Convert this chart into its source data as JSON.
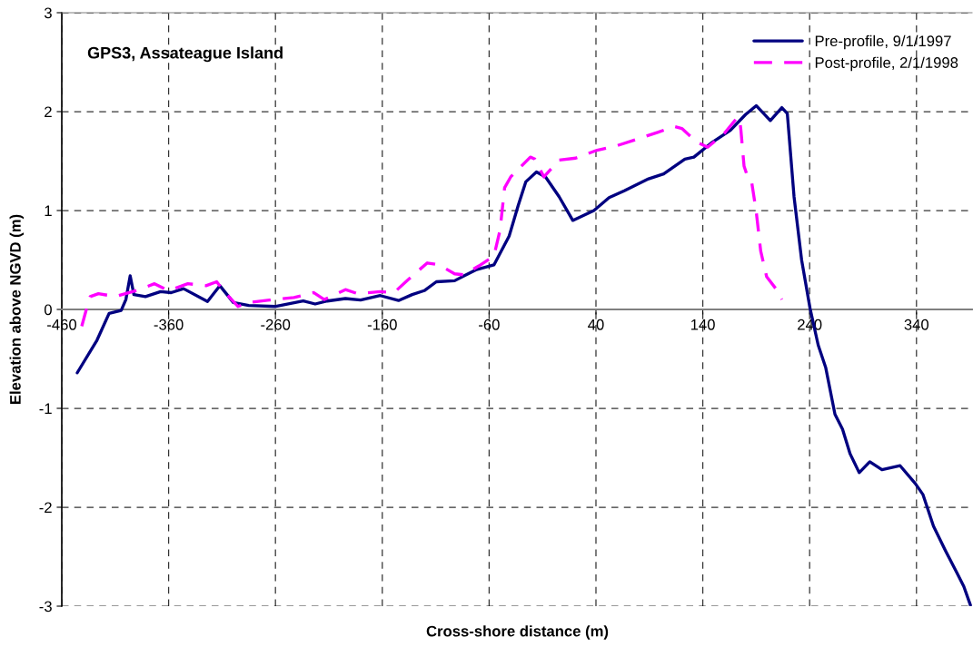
{
  "chart_data": {
    "type": "line",
    "title": "GPS3, Assateague Island",
    "xlabel": "Cross-shore distance (m)",
    "ylabel": "Elevation above NGVD (m)",
    "xlim": [
      -460,
      392
    ],
    "ylim": [
      -3,
      3
    ],
    "xticks": [
      -460,
      -360,
      -260,
      -160,
      -60,
      40,
      140,
      240,
      340
    ],
    "yticks": [
      -3,
      -2,
      -1,
      0,
      1,
      2,
      3
    ],
    "grid": true,
    "legend": "top right",
    "marker": "none",
    "series": [
      {
        "name": "Pre-profile, 9/1/1997",
        "color": "#000080",
        "line_style": "solid",
        "x": [
          -445.5,
          -427,
          -415.7,
          -404.4,
          -400,
          -396,
          -392.5,
          -381.7,
          -367.5,
          -357.6,
          -346,
          -323.6,
          -312,
          -299.4,
          -285,
          -259.7,
          -234,
          -222.8,
          -211.5,
          -194.5,
          -180.3,
          -161.9,
          -144.8,
          -132,
          -120.7,
          -109.4,
          -92.3,
          -72.5,
          -55.5,
          -41.3,
          -32.8,
          -25.7,
          -15.7,
          -7.2,
          5.5,
          18.3,
          38.1,
          52.3,
          66.5,
          89.2,
          103.4,
          123.2,
          131.7,
          148.8,
          165.8,
          180,
          190,
          203.2,
          214,
          219.1,
          225.4,
          232.5,
          240.4,
          248,
          255.1,
          263.7,
          270.8,
          277.9,
          286.4,
          296.3,
          307.7,
          324.7,
          338.9,
          346,
          355.9,
          367.2,
          377.2,
          384.3,
          390.5
        ],
        "values": [
          -0.64,
          -0.31,
          -0.04,
          -0.01,
          0.1,
          0.34,
          0.15,
          0.13,
          0.18,
          0.17,
          0.21,
          0.08,
          0.24,
          0.07,
          0.04,
          0.03,
          0.085,
          0.055,
          0.085,
          0.11,
          0.095,
          0.14,
          0.09,
          0.15,
          0.19,
          0.28,
          0.29,
          0.4,
          0.45,
          0.74,
          1.05,
          1.29,
          1.39,
          1.34,
          1.14,
          0.9,
          1.0,
          1.13,
          1.2,
          1.32,
          1.37,
          1.52,
          1.54,
          1.69,
          1.81,
          1.97,
          2.06,
          1.91,
          2.04,
          1.98,
          1.14,
          0.5,
          0.01,
          -0.36,
          -0.59,
          -1.06,
          -1.21,
          -1.46,
          -1.65,
          -1.54,
          -1.62,
          -1.58,
          -1.76,
          -1.87,
          -2.19,
          -2.44,
          -2.65,
          -2.8,
          -2.99
        ]
      },
      {
        "name": "Post-profile, 2/1/1998",
        "color": "#ff00ff",
        "line_style": "dashed",
        "x": [
          -441.3,
          -437,
          -433.4,
          -425.7,
          -410,
          -387.4,
          -373.2,
          -360.4,
          -342,
          -325,
          -315,
          -307.9,
          -295.1,
          -285,
          -265.4,
          -242.7,
          -224.3,
          -214.3,
          -194.5,
          -183.2,
          -161.9,
          -149,
          -134.9,
          -117.9,
          -106.6,
          -92.3,
          -83.8,
          -69.6,
          -55.5,
          -49.8,
          -45.5,
          -39.8,
          -21.4,
          -17.2,
          -8.7,
          5.5,
          21.1,
          41,
          58,
          78,
          97.7,
          113.3,
          120.4,
          134.6,
          144.5,
          160.1,
          171.5,
          174.3,
          175.7,
          178.6,
          181.4,
          185.7,
          190,
          194.2,
          199.8,
          209.8,
          214
        ],
        "values": [
          -0.17,
          0.0,
          0.13,
          0.16,
          0.13,
          0.2,
          0.26,
          0.19,
          0.26,
          0.24,
          0.28,
          0.18,
          0.03,
          0.07,
          0.095,
          0.12,
          0.17,
          0.1,
          0.2,
          0.16,
          0.18,
          0.17,
          0.31,
          0.47,
          0.45,
          0.36,
          0.35,
          0.44,
          0.54,
          0.8,
          1.23,
          1.34,
          1.54,
          1.52,
          1.34,
          1.51,
          1.53,
          1.61,
          1.65,
          1.72,
          1.79,
          1.85,
          1.83,
          1.69,
          1.64,
          1.78,
          1.93,
          1.94,
          1.81,
          1.45,
          1.36,
          1.29,
          0.99,
          0.59,
          0.33,
          0.19,
          0.1
        ]
      }
    ]
  }
}
